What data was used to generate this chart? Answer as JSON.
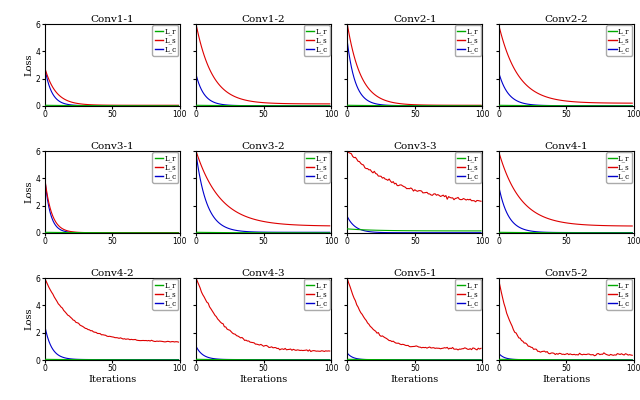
{
  "subplots": [
    {
      "title": "Conv1-1",
      "Ls": [
        2.8,
        0.05,
        8,
        0.0
      ],
      "Lc": [
        2.8,
        0.02,
        5,
        0.0
      ],
      "Lr": [
        0.05,
        0.01,
        30
      ]
    },
    {
      "title": "Conv1-2",
      "Ls": [
        6.0,
        0.15,
        12,
        0.0
      ],
      "Lc": [
        2.3,
        0.02,
        6,
        0.0
      ],
      "Lr": [
        0.05,
        0.01,
        30
      ]
    },
    {
      "title": "Conv2-1",
      "Ls": [
        6.0,
        0.05,
        10,
        0.0
      ],
      "Lc": [
        4.7,
        0.02,
        6,
        0.0
      ],
      "Lr": [
        0.05,
        0.01,
        30
      ]
    },
    {
      "title": "Conv2-2",
      "Ls": [
        6.0,
        0.2,
        14,
        0.0
      ],
      "Lc": [
        2.5,
        0.02,
        7,
        0.0
      ],
      "Lr": [
        0.05,
        0.01,
        30
      ]
    },
    {
      "title": "Conv3-1",
      "Ls": [
        4.0,
        0.02,
        5,
        0.0
      ],
      "Lc": [
        4.0,
        0.02,
        4,
        0.0
      ],
      "Lr": [
        0.05,
        0.01,
        30
      ]
    },
    {
      "title": "Conv3-2",
      "Ls": [
        6.0,
        0.5,
        18,
        0.0
      ],
      "Lc": [
        5.8,
        0.05,
        8,
        0.0
      ],
      "Lr": [
        0.05,
        0.01,
        30
      ]
    },
    {
      "title": "Conv3-3",
      "Ls": [
        6.0,
        2.0,
        40,
        0.06
      ],
      "Lc": [
        1.2,
        0.02,
        6,
        0.0
      ],
      "Lr": [
        0.3,
        0.15,
        20
      ]
    },
    {
      "title": "Conv4-1",
      "Ls": [
        6.0,
        0.5,
        16,
        0.0
      ],
      "Lc": [
        3.5,
        0.03,
        7,
        0.0
      ],
      "Lr": [
        0.05,
        0.01,
        30
      ]
    },
    {
      "title": "Conv4-2",
      "Ls": [
        6.0,
        1.3,
        20,
        0.02
      ],
      "Lc": [
        2.5,
        0.03,
        5,
        0.0
      ],
      "Lr": [
        0.05,
        0.01,
        30
      ]
    },
    {
      "title": "Conv4-3",
      "Ls": [
        6.0,
        0.6,
        20,
        0.03
      ],
      "Lc": [
        1.0,
        0.03,
        5,
        0.0
      ],
      "Lr": [
        0.05,
        0.01,
        30
      ]
    },
    {
      "title": "Conv5-1",
      "Ls": [
        6.0,
        0.8,
        15,
        0.04
      ],
      "Lc": [
        0.5,
        0.02,
        4,
        0.0
      ],
      "Lr": [
        0.05,
        0.01,
        30
      ]
    },
    {
      "title": "Conv5-2",
      "Ls": [
        6.0,
        0.4,
        10,
        0.04
      ],
      "Lc": [
        0.5,
        0.02,
        4,
        0.0
      ],
      "Lr": [
        0.05,
        0.01,
        30
      ]
    }
  ],
  "color_r": "#00aa00",
  "color_s": "#dd0000",
  "color_c": "#0000cc",
  "ylim": [
    0,
    6
  ],
  "xlim": [
    0,
    100
  ],
  "yticks": [
    0,
    2,
    4,
    6
  ],
  "xticks": [
    0,
    50,
    100
  ],
  "ylabel": "Loss",
  "xlabel": "Iterations",
  "legend_labels": [
    "L_r",
    "L_s",
    "L_c"
  ],
  "nrows": 3,
  "ncols": 4
}
